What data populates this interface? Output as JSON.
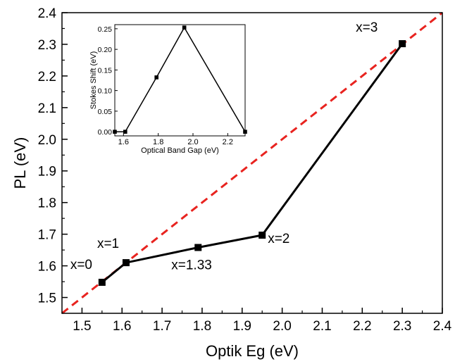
{
  "chart_data": [
    {
      "type": "line",
      "xlabel": "Optik Eg (eV)",
      "ylabel": "PL (eV)",
      "xlim": [
        1.45,
        2.4
      ],
      "ylim": [
        1.45,
        2.4
      ],
      "xticks": [
        "1.5",
        "1.6",
        "1.7",
        "1.8",
        "1.9",
        "2.0",
        "2.1",
        "2.2",
        "2.3",
        "2.4"
      ],
      "yticks": [
        "1.5",
        "1.6",
        "1.7",
        "1.8",
        "1.9",
        "2.0",
        "2.1",
        "2.2",
        "2.3",
        "2.4"
      ],
      "grid": false,
      "series": [
        {
          "x": [
            1.55,
            1.61,
            1.79,
            1.95,
            2.3
          ],
          "y": [
            1.548,
            1.61,
            1.658,
            1.697,
            2.302
          ],
          "color": "#000000"
        }
      ],
      "reference_line": {
        "x": [
          1.45,
          2.4
        ],
        "y": [
          1.45,
          2.4
        ],
        "color": "#e8231f",
        "style": "dashed"
      },
      "annotations": [
        {
          "text": "x=0",
          "x": 1.55,
          "y": 1.548
        },
        {
          "text": "x=1",
          "x": 1.61,
          "y": 1.61
        },
        {
          "text": "x=1.33",
          "x": 1.79,
          "y": 1.658
        },
        {
          "text": "x=2",
          "x": 1.95,
          "y": 1.697
        },
        {
          "text": "x=3",
          "x": 2.3,
          "y": 2.302
        }
      ]
    },
    {
      "type": "line",
      "inset": true,
      "xlabel": "Optical Band Gap (eV)",
      "ylabel": "Stokes Shift (eV)",
      "xlim": [
        1.55,
        2.3
      ],
      "ylim": [
        -0.01,
        0.26
      ],
      "xticks": [
        "1.6",
        "1.8",
        "2.0",
        "2.2"
      ],
      "yticks": [
        "0.00",
        "0.05",
        "0.10",
        "0.15",
        "0.20",
        "0.25"
      ],
      "series": [
        {
          "x": [
            1.55,
            1.61,
            1.79,
            1.95,
            2.3
          ],
          "y": [
            0.0,
            0.0,
            0.132,
            0.253,
            0.0
          ],
          "color": "#000000"
        }
      ]
    }
  ]
}
